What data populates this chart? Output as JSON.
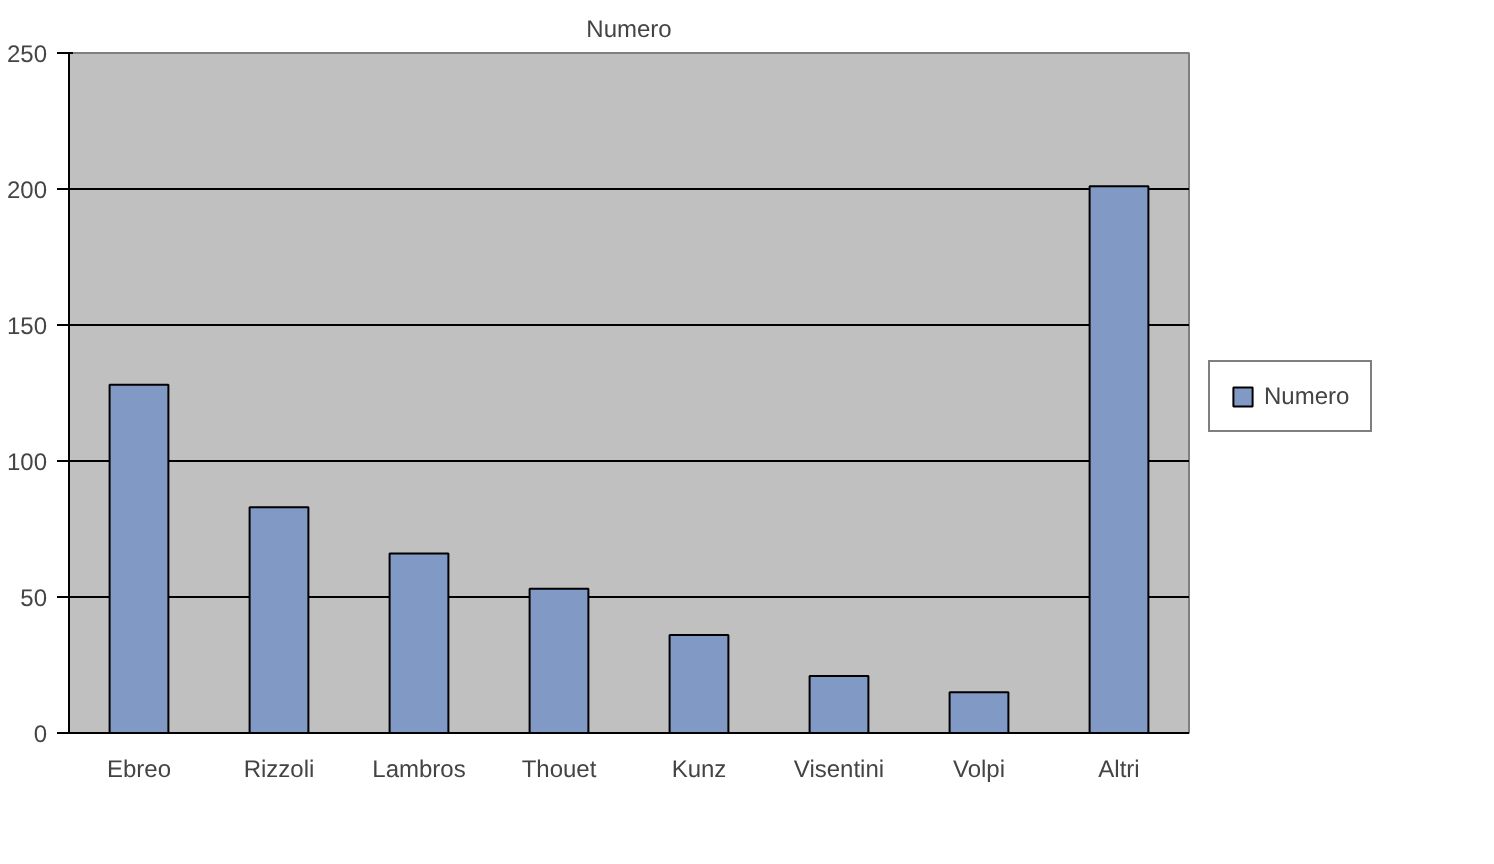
{
  "chart_data": {
    "type": "bar",
    "title": "Numero",
    "categories": [
      "Ebreo",
      "Rizzoli",
      "Lambros",
      "Thouet",
      "Kunz",
      "Visentini",
      "Volpi",
      "Altri"
    ],
    "series": [
      {
        "name": "Numero",
        "color": "#8099c5",
        "values": [
          128,
          83,
          66,
          53,
          36,
          21,
          15,
          201
        ]
      }
    ],
    "ylim": [
      0,
      250
    ],
    "yticks": [
      0,
      50,
      100,
      150,
      200,
      250
    ],
    "grid": "y",
    "legend": "right"
  }
}
